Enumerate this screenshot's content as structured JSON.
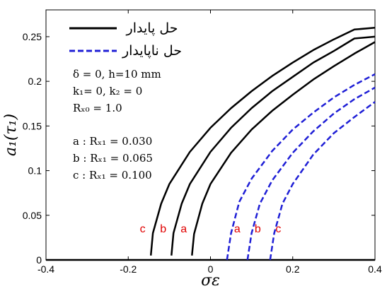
{
  "chart_data": {
    "type": "line",
    "xlabel": "σε",
    "ylabel": "a₁(τ₁)",
    "xlim": [
      -0.4,
      0.4
    ],
    "ylim": [
      0,
      0.28
    ],
    "xticks": [
      "-0.4",
      "-0.2",
      "0",
      "0.2",
      "0.4"
    ],
    "yticks": [
      "0",
      "0.05",
      "0.1",
      "0.15",
      "0.2",
      "0.25"
    ],
    "grid": false,
    "legend": {
      "placement": "top-left",
      "entries": [
        {
          "label": "حل پایدار",
          "style": "solid",
          "color": "#000000"
        },
        {
          "label": "حل ناپایدار",
          "style": "dashed",
          "color": "#1f1fd6"
        }
      ]
    },
    "annotations": {
      "params": [
        "δ = 0, h=10 mm",
        "k₁= 0, k₂ = 0",
        "Rₓ₀ = 1.0"
      ],
      "cases": [
        "a : Rₓ₁ = 0.030",
        "b : Rₓ₁ = 0.065",
        "c : Rₓ₁ = 0.100"
      ]
    },
    "series": [
      {
        "name": "a",
        "kind": "stable",
        "x": [
          -0.045,
          -0.04,
          -0.02,
          0.0,
          0.05,
          0.1,
          0.15,
          0.2,
          0.25,
          0.3,
          0.35,
          0.4
        ],
        "y": [
          0.005,
          0.029,
          0.063,
          0.085,
          0.12,
          0.146,
          0.167,
          0.185,
          0.202,
          0.217,
          0.231,
          0.244
        ]
      },
      {
        "name": "b",
        "kind": "stable",
        "x": [
          -0.095,
          -0.09,
          -0.07,
          -0.05,
          0.0,
          0.05,
          0.1,
          0.15,
          0.2,
          0.25,
          0.3,
          0.35,
          0.4
        ],
        "y": [
          0.005,
          0.03,
          0.063,
          0.085,
          0.121,
          0.148,
          0.17,
          0.189,
          0.205,
          0.221,
          0.234,
          0.248,
          0.25
        ]
      },
      {
        "name": "c",
        "kind": "stable",
        "x": [
          -0.145,
          -0.14,
          -0.12,
          -0.1,
          -0.05,
          0.0,
          0.05,
          0.1,
          0.15,
          0.2,
          0.25,
          0.3,
          0.35,
          0.4
        ],
        "y": [
          0.005,
          0.03,
          0.063,
          0.085,
          0.121,
          0.148,
          0.17,
          0.189,
          0.206,
          0.221,
          0.235,
          0.247,
          0.258,
          0.26
        ]
      },
      {
        "name": "a",
        "kind": "unstable",
        "x": [
          0.04,
          0.05,
          0.07,
          0.1,
          0.15,
          0.2,
          0.25,
          0.3,
          0.35,
          0.4
        ],
        "y": [
          0.0,
          0.03,
          0.065,
          0.091,
          0.122,
          0.146,
          0.165,
          0.182,
          0.196,
          0.208
        ]
      },
      {
        "name": "b",
        "kind": "unstable",
        "x": [
          0.09,
          0.1,
          0.12,
          0.15,
          0.2,
          0.25,
          0.3,
          0.35,
          0.4
        ],
        "y": [
          0.0,
          0.03,
          0.063,
          0.089,
          0.12,
          0.144,
          0.164,
          0.18,
          0.193
        ]
      },
      {
        "name": "c",
        "kind": "unstable",
        "x": [
          0.145,
          0.155,
          0.175,
          0.2,
          0.25,
          0.3,
          0.35,
          0.4
        ],
        "y": [
          0.0,
          0.03,
          0.063,
          0.085,
          0.118,
          0.142,
          0.16,
          0.177
        ]
      }
    ],
    "baseline": {
      "x": [
        -0.4,
        0.4
      ],
      "y": [
        0.0,
        0.0
      ]
    },
    "curve_labels": [
      {
        "text": "c",
        "x": -0.165,
        "y": 0.031
      },
      {
        "text": "b",
        "x": -0.115,
        "y": 0.031
      },
      {
        "text": "a",
        "x": -0.065,
        "y": 0.031
      },
      {
        "text": "a",
        "x": 0.065,
        "y": 0.031
      },
      {
        "text": "b",
        "x": 0.115,
        "y": 0.031
      },
      {
        "text": "c",
        "x": 0.165,
        "y": 0.031
      }
    ],
    "colors": {
      "stable": "#000000",
      "unstable": "#1f1fd6",
      "label": "#e00000"
    }
  }
}
